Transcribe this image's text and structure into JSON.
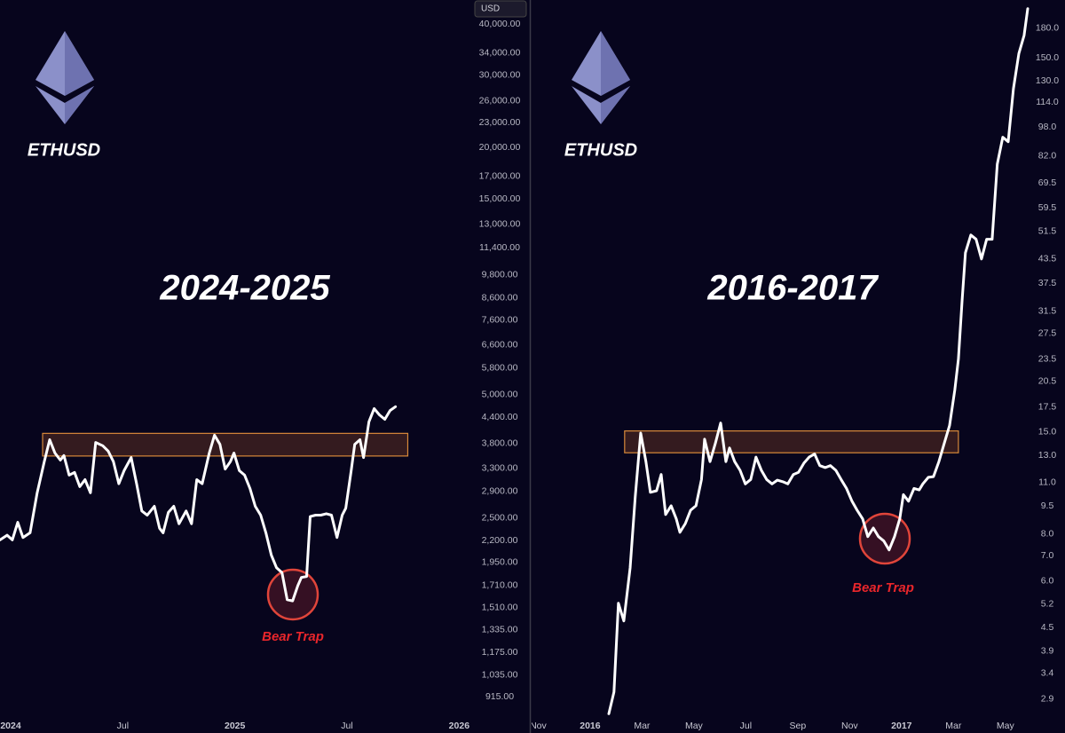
{
  "chart_data": [
    {
      "type": "line",
      "title": "2024-2025",
      "symbol": "ETHUSD",
      "currency": "USD",
      "annotation": "Bear Trap",
      "log_y": true,
      "color": "#ffffff",
      "xlim": [
        -0.57,
        24.6
      ],
      "ylim": [
        830,
        45800
      ],
      "xticks": [
        {
          "value": 0,
          "label": "2024"
        },
        {
          "value": 6,
          "label": "Jul"
        },
        {
          "value": 12,
          "label": "2025"
        },
        {
          "value": 18,
          "label": "Jul"
        },
        {
          "value": 24,
          "label": "2026"
        }
      ],
      "yticks": [
        {
          "value": 40000,
          "label": "40,000.00"
        },
        {
          "value": 34000,
          "label": "34,000.00"
        },
        {
          "value": 30000,
          "label": "30,000.00"
        },
        {
          "value": 26000,
          "label": "26,000.00"
        },
        {
          "value": 23000,
          "label": "23,000.00"
        },
        {
          "value": 20000,
          "label": "20,000.00"
        },
        {
          "value": 17000,
          "label": "17,000.00"
        },
        {
          "value": 15000,
          "label": "15,000.00"
        },
        {
          "value": 13000,
          "label": "13,000.00"
        },
        {
          "value": 11400,
          "label": "11,400.00"
        },
        {
          "value": 9800,
          "label": "9,800.00"
        },
        {
          "value": 8600,
          "label": "8,600.00"
        },
        {
          "value": 7600,
          "label": "7,600.00"
        },
        {
          "value": 6600,
          "label": "6,600.00"
        },
        {
          "value": 5800,
          "label": "5,800.00"
        },
        {
          "value": 5000,
          "label": "5,000.00"
        },
        {
          "value": 4400,
          "label": "4,400.00"
        },
        {
          "value": 3800,
          "label": "3,800.00"
        },
        {
          "value": 3300,
          "label": "3,300.00"
        },
        {
          "value": 2900,
          "label": "2,900.00"
        },
        {
          "value": 2500,
          "label": "2,500.00"
        },
        {
          "value": 2200,
          "label": "2,200.00"
        },
        {
          "value": 1950,
          "label": "1,950.00"
        },
        {
          "value": 1710,
          "label": "1,710.00"
        },
        {
          "value": 1510,
          "label": "1,510.00"
        },
        {
          "value": 1335,
          "label": "1,335.00"
        },
        {
          "value": 1175,
          "label": "1,175.00"
        },
        {
          "value": 1035,
          "label": "1,035.00"
        },
        {
          "value": 915,
          "label": "915.00"
        }
      ],
      "zone": {
        "xlim": [
          1.71,
          21.25
        ],
        "ylim": [
          3540,
          4020
        ]
      },
      "x": [
        -0.57,
        -0.19,
        0.09,
        0.38,
        0.66,
        1.04,
        1.42,
        1.8,
        2.09,
        2.37,
        2.66,
        2.85,
        3.13,
        3.42,
        3.7,
        3.98,
        4.27,
        4.55,
        4.93,
        5.22,
        5.5,
        5.79,
        6.07,
        6.45,
        6.74,
        7.02,
        7.31,
        7.69,
        7.97,
        8.16,
        8.44,
        8.73,
        9.01,
        9.39,
        9.68,
        9.96,
        10.25,
        10.63,
        10.91,
        11.2,
        11.48,
        11.76,
        11.95,
        12.24,
        12.52,
        12.81,
        13.09,
        13.38,
        13.66,
        13.95,
        14.23,
        14.52,
        14.8,
        15.09,
        15.37,
        15.56,
        15.84,
        16.03,
        16.32,
        16.6,
        16.89,
        17.17,
        17.46,
        17.74,
        17.93,
        18.22,
        18.41,
        18.69,
        18.88,
        19.17,
        19.45,
        19.73,
        20.02,
        20.3,
        20.59
      ],
      "values": [
        2210,
        2270,
        2210,
        2440,
        2240,
        2300,
        2880,
        3430,
        3880,
        3600,
        3460,
        3550,
        3180,
        3230,
        2980,
        3100,
        2880,
        3820,
        3750,
        3640,
        3430,
        3030,
        3260,
        3510,
        3030,
        2600,
        2540,
        2670,
        2360,
        2300,
        2580,
        2670,
        2420,
        2600,
        2420,
        3100,
        3030,
        3600,
        3980,
        3780,
        3290,
        3430,
        3600,
        3260,
        3180,
        2950,
        2670,
        2540,
        2300,
        2030,
        1890,
        1840,
        1580,
        1570,
        1710,
        1790,
        1800,
        2520,
        2540,
        2540,
        2560,
        2540,
        2240,
        2540,
        2640,
        3260,
        3780,
        3880,
        3510,
        4290,
        4620,
        4460,
        4350,
        4570,
        4670
      ]
    },
    {
      "type": "line",
      "title": "2016-2017",
      "symbol": "ETHUSD",
      "annotation": "Bear Trap",
      "log_y": true,
      "color": "#ffffff",
      "xlim": [
        -0.22,
        18.93
      ],
      "ylim": [
        2.64,
        214
      ],
      "xticks": [
        {
          "value": 0,
          "label": "Nov"
        },
        {
          "value": 2,
          "label": "2016"
        },
        {
          "value": 4,
          "label": "Mar"
        },
        {
          "value": 6,
          "label": "May"
        },
        {
          "value": 8,
          "label": "Jul"
        },
        {
          "value": 10,
          "label": "Sep"
        },
        {
          "value": 12,
          "label": "Nov"
        },
        {
          "value": 14,
          "label": "2017"
        },
        {
          "value": 16,
          "label": "Mar"
        },
        {
          "value": 18,
          "label": "May"
        }
      ],
      "yticks": [
        {
          "value": 180,
          "label": "180.0"
        },
        {
          "value": 150,
          "label": "150.0"
        },
        {
          "value": 130,
          "label": "130.0"
        },
        {
          "value": 114,
          "label": "114.0"
        },
        {
          "value": 98,
          "label": "98.0"
        },
        {
          "value": 82,
          "label": "82.0"
        },
        69.5,
        59.5,
        51.5,
        43.5,
        37.5,
        31.5,
        27.5,
        23.5,
        20.5,
        17.5,
        {
          "value": 15,
          "label": "15.0"
        },
        {
          "value": 13,
          "label": "13.0"
        },
        {
          "value": 11,
          "label": "11.0"
        },
        9.5,
        {
          "value": 8,
          "label": "8.0"
        },
        {
          "value": 7,
          "label": "7.0"
        },
        {
          "value": 6,
          "label": "6.0"
        },
        5.2,
        4.5,
        3.9,
        3.4,
        2.9
      ],
      "zone": {
        "xlim": [
          3.33,
          16.19
        ],
        "ylim": [
          13.2,
          15.1
        ]
      },
      "x": [
        2.72,
        2.92,
        3.09,
        3.3,
        3.54,
        3.74,
        3.95,
        4.15,
        4.32,
        4.56,
        4.74,
        4.91,
        5.12,
        5.32,
        5.46,
        5.67,
        5.87,
        6.08,
        6.29,
        6.41,
        6.62,
        6.82,
        7.03,
        7.23,
        7.37,
        7.57,
        7.78,
        7.98,
        8.19,
        8.39,
        8.6,
        8.8,
        9.01,
        9.21,
        9.42,
        9.62,
        9.83,
        10.03,
        10.24,
        10.44,
        10.65,
        10.85,
        11.06,
        11.26,
        11.47,
        11.67,
        11.88,
        12.09,
        12.29,
        12.5,
        12.7,
        12.91,
        13.11,
        13.32,
        13.52,
        13.73,
        13.93,
        14.07,
        14.27,
        14.48,
        14.68,
        14.82,
        15.03,
        15.23,
        15.44,
        15.64,
        15.85,
        16.05,
        16.19,
        16.33,
        16.46,
        16.67,
        16.87,
        17.08,
        17.28,
        17.49,
        17.69,
        17.9,
        18.11,
        18.31,
        18.52,
        18.72,
        18.86
      ],
      "values": [
        2.65,
        3.03,
        5.23,
        4.69,
        6.5,
        10.1,
        14.9,
        12.5,
        10.35,
        10.45,
        11.55,
        9.03,
        9.53,
        8.79,
        8.09,
        8.54,
        9.27,
        9.53,
        11.2,
        14.35,
        12.5,
        13.95,
        15.85,
        12.5,
        13.6,
        12.5,
        11.85,
        10.9,
        11.2,
        12.85,
        11.85,
        11.2,
        10.9,
        11.15,
        11.05,
        10.9,
        11.55,
        11.7,
        12.4,
        12.85,
        13.1,
        12.2,
        12.05,
        12.2,
        11.85,
        11.2,
        10.6,
        9.8,
        9.27,
        8.79,
        7.88,
        8.31,
        7.88,
        7.67,
        7.26,
        7.88,
        8.79,
        10.2,
        9.8,
        10.6,
        10.5,
        10.9,
        11.35,
        11.4,
        12.5,
        13.95,
        15.6,
        19.4,
        23.5,
        33.5,
        45.2,
        50.4,
        49.1,
        43.5,
        49.1,
        49.1,
        78.0,
        92.0,
        89.5,
        124,
        154,
        172,
        203
      ]
    }
  ]
}
